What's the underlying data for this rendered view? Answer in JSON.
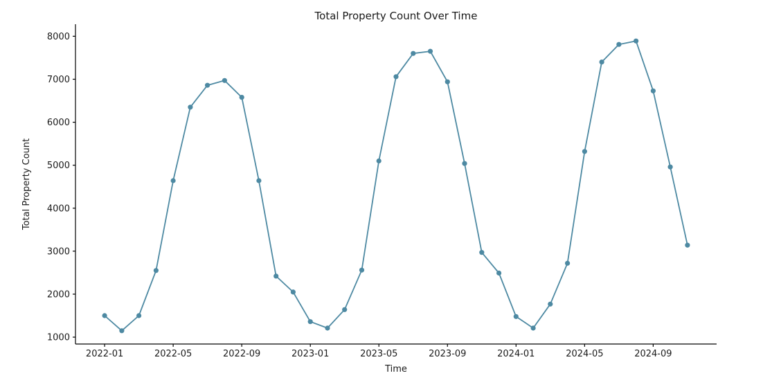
{
  "chart_data": {
    "type": "line",
    "title": "Total Property Count Over Time",
    "xlabel": "Time",
    "ylabel": "Total Property Count",
    "x": [
      "2022-01",
      "2022-02",
      "2022-03",
      "2022-04",
      "2022-05",
      "2022-06",
      "2022-07",
      "2022-08",
      "2022-09",
      "2022-10",
      "2022-11",
      "2022-12",
      "2023-01",
      "2023-02",
      "2023-03",
      "2023-04",
      "2023-05",
      "2023-06",
      "2023-07",
      "2023-08",
      "2023-09",
      "2023-10",
      "2023-11",
      "2023-12",
      "2024-01",
      "2024-02",
      "2024-03",
      "2024-04",
      "2024-05",
      "2024-06",
      "2024-07",
      "2024-08",
      "2024-09",
      "2024-10",
      "2024-11"
    ],
    "values": [
      1500,
      1150,
      1500,
      2550,
      4640,
      6350,
      6860,
      6970,
      6580,
      4640,
      2420,
      2050,
      1360,
      1210,
      1640,
      2560,
      5100,
      7060,
      7600,
      7650,
      6940,
      5040,
      2970,
      2490,
      1480,
      1210,
      1770,
      2720,
      5320,
      7400,
      7810,
      7890,
      6730,
      4960,
      3140
    ],
    "x_tick_labels": [
      "2022-01",
      "2022-05",
      "2022-09",
      "2023-01",
      "2023-05",
      "2023-09",
      "2024-01",
      "2024-05",
      "2024-09"
    ],
    "y_tick_labels": [
      "1000",
      "2000",
      "3000",
      "4000",
      "5000",
      "6000",
      "7000",
      "8000"
    ],
    "y_ticks": [
      1000,
      2000,
      3000,
      4000,
      5000,
      6000,
      7000,
      8000
    ],
    "xlim_months": [
      -1.7,
      35.7
    ],
    "ylim": [
      840,
      8280
    ],
    "grid": false,
    "legend": "none",
    "line_color": "#4d89a2",
    "marker_color": "#4d89a2",
    "marker": "circle",
    "background_color": "#ffffff",
    "text_color": "#1a1a1a",
    "axis_color": "#000000"
  }
}
